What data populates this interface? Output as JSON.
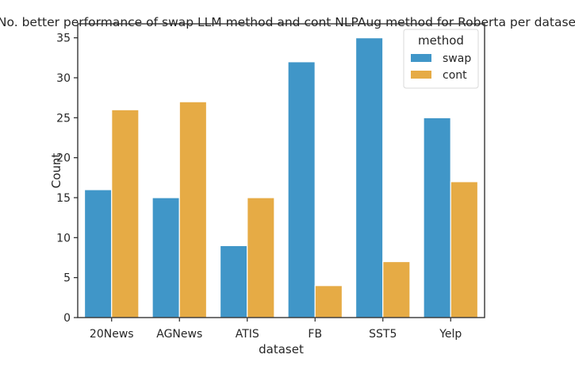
{
  "chart_data": {
    "type": "bar",
    "title": "No. better performance of swap LLM method and cont NLPAug method for Roberta per dataset.",
    "xlabel": "dataset",
    "ylabel": "Count",
    "categories": [
      "20News",
      "AGNews",
      "ATIS",
      "FB",
      "SST5",
      "Yelp"
    ],
    "series": [
      {
        "name": "swap",
        "values": [
          16,
          15,
          9,
          32,
          35,
          25
        ],
        "color": "#4096c8"
      },
      {
        "name": "cont",
        "values": [
          26,
          27,
          15,
          4,
          7,
          17
        ],
        "color": "#e6ab45"
      }
    ],
    "ylim": [
      0,
      36.75
    ],
    "yticks": [
      0,
      5,
      10,
      15,
      20,
      25,
      30,
      35
    ],
    "legend": {
      "title": "method",
      "placement": "top-right"
    },
    "grid": false
  }
}
